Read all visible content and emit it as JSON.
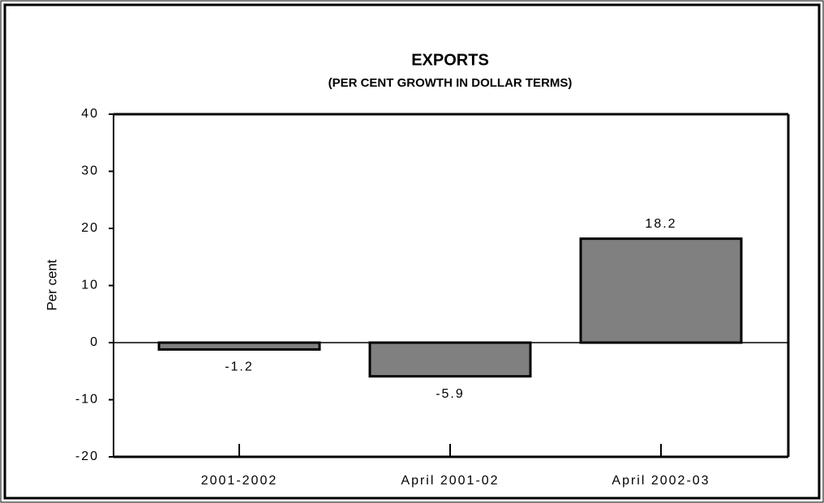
{
  "chart_data": {
    "type": "bar",
    "title": "EXPORTS",
    "subtitle": "(PER CENT GROWTH IN DOLLAR TERMS)",
    "ylabel": "Per cent",
    "categories": [
      "2001-2002",
      "April 2001-02",
      "April 2002-03"
    ],
    "values": [
      -1.2,
      -5.9,
      18.2
    ],
    "color": "#808080",
    "ylim": [
      -20,
      40
    ],
    "yticks": [
      -20,
      -10,
      0,
      10,
      20,
      30,
      40
    ],
    "grid": false
  }
}
